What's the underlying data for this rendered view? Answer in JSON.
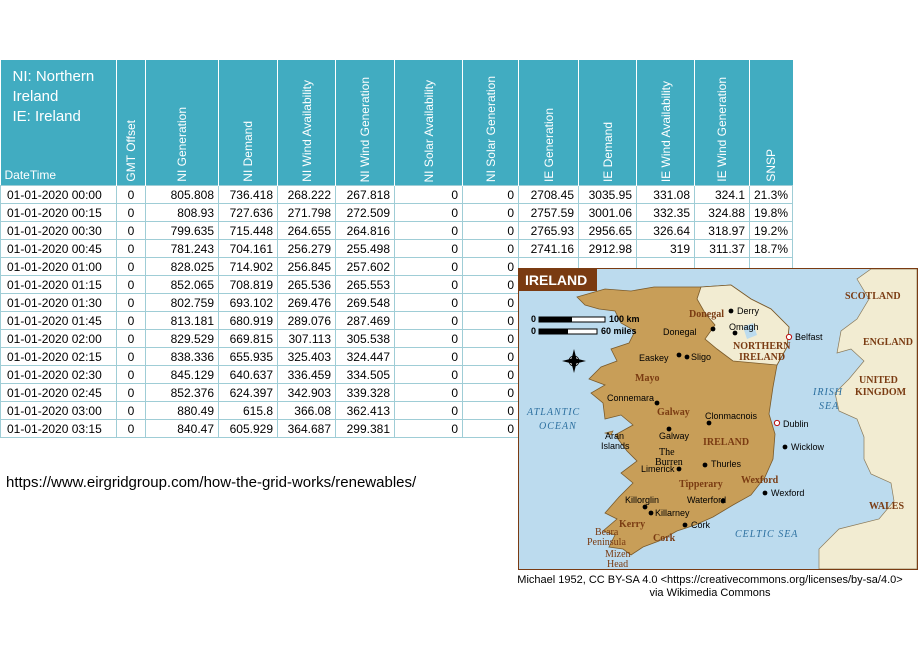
{
  "legend": [
    "NI: Northern Ireland",
    "IE: Ireland"
  ],
  "columns": [
    "DateTime",
    "GMT Offset",
    "NI Generation",
    "NI Demand",
    "NI Wind Availability",
    "NI Wind Generation",
    "NI Solar Availability",
    "NI Solar Generation",
    "IE Generation",
    "IE Demand",
    "IE Wind Availability",
    "IE Wind Generation",
    "SNSP"
  ],
  "rows": [
    [
      "01-01-2020 00:00",
      "0",
      "805.808",
      "736.418",
      "268.222",
      "267.818",
      "0",
      "0",
      "2708.45",
      "3035.95",
      "331.08",
      "324.1",
      "21.3%"
    ],
    [
      "01-01-2020 00:15",
      "0",
      "808.93",
      "727.636",
      "271.798",
      "272.509",
      "0",
      "0",
      "2757.59",
      "3001.06",
      "332.35",
      "324.88",
      "19.8%"
    ],
    [
      "01-01-2020 00:30",
      "0",
      "799.635",
      "715.448",
      "264.655",
      "264.816",
      "0",
      "0",
      "2765.93",
      "2956.65",
      "326.64",
      "318.97",
      "19.2%"
    ],
    [
      "01-01-2020 00:45",
      "0",
      "781.243",
      "704.161",
      "256.279",
      "255.498",
      "0",
      "0",
      "2741.16",
      "2912.98",
      "319",
      "311.37",
      "18.7%"
    ],
    [
      "01-01-2020 01:00",
      "0",
      "828.025",
      "714.902",
      "256.845",
      "257.602",
      "0",
      "0",
      "",
      "",
      "",
      "",
      ""
    ],
    [
      "01-01-2020 01:15",
      "0",
      "852.065",
      "708.819",
      "265.536",
      "265.553",
      "0",
      "0",
      "",
      "",
      "",
      "",
      ""
    ],
    [
      "01-01-2020 01:30",
      "0",
      "802.759",
      "693.102",
      "269.476",
      "269.548",
      "0",
      "0",
      "",
      "",
      "",
      "",
      ""
    ],
    [
      "01-01-2020 01:45",
      "0",
      "813.181",
      "680.919",
      "289.076",
      "287.469",
      "0",
      "0",
      "",
      "",
      "",
      "",
      ""
    ],
    [
      "01-01-2020 02:00",
      "0",
      "829.529",
      "669.815",
      "307.113",
      "305.538",
      "0",
      "0",
      "",
      "",
      "",
      "",
      ""
    ],
    [
      "01-01-2020 02:15",
      "0",
      "838.336",
      "655.935",
      "325.403",
      "324.447",
      "0",
      "0",
      "",
      "",
      "",
      "",
      ""
    ],
    [
      "01-01-2020 02:30",
      "0",
      "845.129",
      "640.637",
      "336.459",
      "334.505",
      "0",
      "0",
      "",
      "",
      "",
      "",
      ""
    ],
    [
      "01-01-2020 02:45",
      "0",
      "852.376",
      "624.397",
      "342.903",
      "339.328",
      "0",
      "0",
      "",
      "",
      "",
      "",
      ""
    ],
    [
      "01-01-2020 03:00",
      "0",
      "880.49",
      "615.8",
      "366.08",
      "362.413",
      "0",
      "0",
      "",
      "",
      "",
      "",
      ""
    ],
    [
      "01-01-2020 03:15",
      "0",
      "840.47",
      "605.929",
      "364.687",
      "299.381",
      "0",
      "0",
      "",
      "",
      "",
      "",
      ""
    ]
  ],
  "url": "https://www.eirgridgroup.com/how-the-grid-works/renewables/",
  "map": {
    "title": "IRELAND",
    "scale_km": "100 km",
    "scale_miles": "60 miles",
    "scale_zero": "0",
    "seas": {
      "atlantic_1": "ATLANTIC",
      "atlantic_2": "OCEAN",
      "irish_1": "IRISH",
      "irish_2": "SEA",
      "celtic": "CELTIC SEA"
    },
    "countries": {
      "scotland": "SCOTLAND",
      "england": "ENGLAND",
      "uk_1": "UNITED",
      "uk_2": "KINGDOM",
      "wales": "WALES",
      "ni_1": "NORTHERN",
      "ni_2": "IRELAND",
      "ireland": "IRELAND"
    },
    "counties": {
      "donegal": "Donegal",
      "mayo": "Mayo",
      "galway": "Galway",
      "burren_1": "The",
      "burren_2": "Burren",
      "tipperary": "Tipperary",
      "wexford": "Wexford",
      "kerry": "Kerry",
      "cork": "Cork",
      "beara_1": "Beara",
      "beara_2": "Peninsula",
      "mizen_1": "Mizen",
      "mizen_2": "Head"
    },
    "towns": {
      "derry": "Derry",
      "donegal_town": "Donegal",
      "omagh": "Omagh",
      "belfast": "Belfast",
      "easkey": "Easkey",
      "sligo": "Sligo",
      "connemara": "Connemara",
      "clonmacnois": "Clonmacnois",
      "dublin": "Dublin",
      "galway_city": "Galway",
      "aran_1": "Aran",
      "aran_2": "Islands",
      "limerick": "Limerick",
      "thurles": "Thurles",
      "wicklow": "Wicklow",
      "waterford": "Waterford",
      "wexford_town": "Wexford",
      "killorglin": "Killorglin",
      "killarney": "Killarney",
      "cork_city": "Cork"
    },
    "colors": {
      "sea": "#bcdbee",
      "land_ie": "#c89e58",
      "land_uk": "#f2ecd2",
      "title_bg": "#7a3b12",
      "border": "#7a3b12"
    }
  },
  "credit": [
    "Michael 1952, CC BY-SA 4.0 <https://creativecommons.org/licenses/by-sa/4.0>",
    "via Wikimedia Commons"
  ]
}
